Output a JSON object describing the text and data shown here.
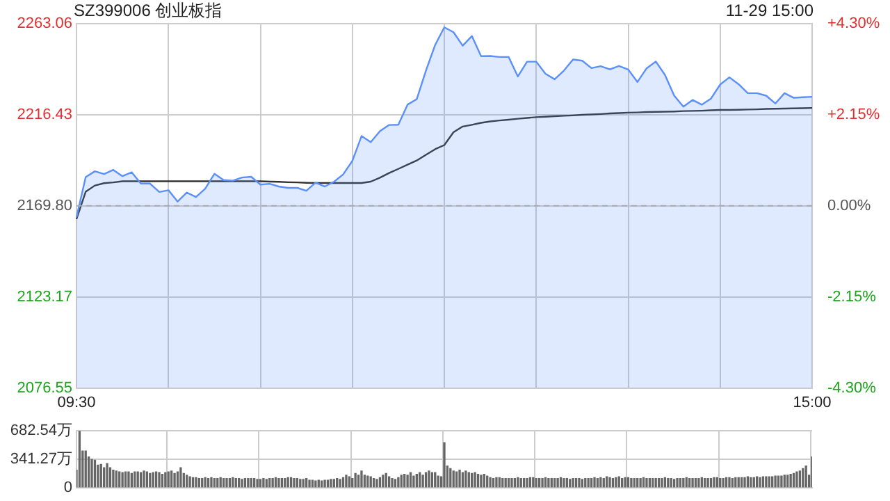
{
  "chart_data": [
    {
      "type": "area",
      "title": "SZ399006 创业板指",
      "annotations": [
        "11-29 15:00"
      ],
      "categories": [
        "09:30",
        null,
        null,
        null,
        null,
        null,
        null,
        null,
        null,
        null,
        null,
        null,
        null,
        null,
        null,
        null,
        null,
        null,
        null,
        null,
        null,
        null,
        null,
        null,
        null,
        null,
        null,
        null,
        null,
        null,
        null,
        null,
        null,
        null,
        null,
        null,
        null,
        null,
        null,
        null,
        null,
        null,
        null,
        null,
        null,
        null,
        null,
        null,
        null,
        null,
        null,
        null,
        null,
        null,
        null,
        null,
        null,
        null,
        null,
        null,
        null,
        null,
        null,
        null,
        null,
        null,
        null,
        null,
        null,
        null,
        null,
        null,
        null,
        null,
        null,
        null,
        null,
        null,
        null,
        null,
        "15:00"
      ],
      "ylim": [
        2076.55,
        2263.06
      ],
      "yticks": [
        {
          "value": 2076.55,
          "label": "2076.55"
        },
        {
          "value": 2123.17,
          "label": "2123.17"
        },
        {
          "value": 2169.8,
          "label": "2169.80"
        },
        {
          "value": 2216.43,
          "label": "2216.43"
        },
        {
          "value": 2263.06,
          "label": "2263.06"
        }
      ],
      "y2lim": [
        -4.3,
        4.3
      ],
      "y2ticks": [
        {
          "value": -4.3,
          "label": "-4.30%"
        },
        {
          "value": -2.15,
          "label": "-2.15%"
        },
        {
          "value": 0,
          "label": "0.00%"
        },
        {
          "value": 2.15,
          "label": "+2.15%"
        },
        {
          "value": 4.3,
          "label": "+4.30%"
        }
      ],
      "grid": true,
      "legend": false,
      "marker": "none",
      "ref_lines": [
        {
          "axis": "y",
          "value": 2169.8,
          "line_style": "dashed",
          "color": "#aaaaaa"
        }
      ],
      "series": [
        {
          "type": "area",
          "color": "#5b8ff9",
          "values": [
            2163.9,
            2184.5,
            2187.5,
            2186.1,
            2188.2,
            2185.0,
            2187.0,
            2181.2,
            2181.2,
            2176.9,
            2177.8,
            2172.0,
            2176.6,
            2174.3,
            2178.6,
            2186.2,
            2183.0,
            2182.7,
            2184.3,
            2184.7,
            2180.7,
            2181.1,
            2179.7,
            2179.0,
            2179.0,
            2177.5,
            2181.7,
            2179.7,
            2182.1,
            2185.9,
            2192.8,
            2205.5,
            2202.4,
            2208.0,
            2211.2,
            2211.3,
            2221.6,
            2224.4,
            2239.0,
            2252.1,
            2261.2,
            2258.7,
            2251.8,
            2256.7,
            2246.4,
            2246.5,
            2246.0,
            2246.0,
            2236.0,
            2243.6,
            2243.6,
            2237.4,
            2234.6,
            2239.0,
            2244.7,
            2244.1,
            2240.3,
            2241.3,
            2239.7,
            2241.4,
            2239.6,
            2233.2,
            2240.2,
            2243.7,
            2236.8,
            2226.2,
            2220.6,
            2224.0,
            2221.6,
            2224.7,
            2231.9,
            2235.6,
            2232.1,
            2227.5,
            2227.5,
            2226.2,
            2222.2,
            2227.5,
            2225.1,
            2225.4,
            2225.6
          ]
        },
        {
          "type": "line",
          "color": "#333333",
          "values": [
            2163.0,
            2177.0,
            2180.2,
            2181.4,
            2181.8,
            2182.4,
            2182.4,
            2182.4,
            2182.4,
            2182.4,
            2182.4,
            2182.4,
            2182.4,
            2182.4,
            2182.4,
            2182.4,
            2182.4,
            2182.4,
            2182.4,
            2182.4,
            2182.4,
            2182.2,
            2182.1,
            2181.9,
            2181.8,
            2181.6,
            2181.5,
            2181.5,
            2181.5,
            2181.5,
            2181.5,
            2181.5,
            2182.2,
            2184.2,
            2186.6,
            2188.7,
            2190.9,
            2193.0,
            2195.9,
            2198.8,
            2200.9,
            2207.5,
            2210.4,
            2211.3,
            2212.3,
            2213.0,
            2213.5,
            2213.9,
            2214.4,
            2214.8,
            2215.2,
            2215.4,
            2215.7,
            2215.9,
            2216.1,
            2216.4,
            2216.6,
            2216.8,
            2217.1,
            2217.3,
            2217.5,
            2217.6,
            2217.8,
            2217.9,
            2218.0,
            2218.1,
            2218.3,
            2218.4,
            2218.5,
            2218.7,
            2218.9,
            2218.9,
            2219.0,
            2219.1,
            2219.2,
            2219.4,
            2219.5,
            2219.6,
            2219.7,
            2219.8,
            2219.9
          ]
        }
      ]
    },
    {
      "type": "bar",
      "color": "#666666",
      "tick_labels": "y",
      "grid": true,
      "legend": false,
      "categories": [
        null,
        null,
        null,
        null,
        null,
        null,
        null,
        null,
        null,
        null,
        null,
        null,
        null,
        null,
        null,
        null,
        null,
        null,
        null,
        null,
        null,
        null,
        null,
        null,
        null,
        null,
        null,
        null,
        null,
        null,
        null,
        null,
        null,
        null,
        null,
        null,
        null,
        null,
        null,
        null,
        null,
        null,
        null,
        null,
        null,
        null,
        null,
        null,
        null,
        null,
        null,
        null,
        null,
        null,
        null,
        null,
        null,
        null,
        null,
        null,
        null,
        null,
        null,
        null,
        null,
        null,
        null,
        null,
        null,
        null,
        null,
        null,
        null,
        null,
        null,
        null,
        null,
        null,
        null,
        null,
        null,
        null,
        null,
        null,
        null,
        null,
        null,
        null,
        null,
        null,
        null,
        null,
        null,
        null,
        null,
        null,
        null,
        null,
        null,
        null,
        null,
        null,
        null,
        null,
        null,
        null,
        null,
        null,
        null,
        null,
        null,
        null,
        null,
        null,
        null,
        null,
        null,
        null,
        null,
        null,
        null,
        null,
        null,
        null,
        null,
        null,
        null,
        null,
        null,
        null,
        null,
        null,
        null,
        null,
        null,
        null,
        null,
        null,
        null,
        null,
        null,
        null,
        null,
        null,
        null,
        null,
        null,
        null,
        null,
        null,
        null,
        null,
        null,
        null,
        null,
        null,
        null,
        null,
        null,
        null,
        null,
        null,
        null,
        null,
        null,
        null,
        null,
        null,
        null,
        null,
        null,
        null,
        null,
        null,
        null,
        null,
        null,
        null,
        null,
        null,
        null,
        null,
        null,
        null,
        null,
        null,
        null,
        null,
        null,
        null,
        null,
        null,
        null,
        null,
        null,
        null,
        null,
        null,
        null,
        null,
        null,
        null,
        null,
        null,
        null,
        null,
        null,
        null,
        null,
        null,
        null,
        null,
        null,
        null,
        null,
        null,
        null,
        null,
        null,
        null,
        null,
        null,
        null,
        null,
        null,
        null,
        null,
        null,
        null,
        null,
        null,
        null,
        null,
        null,
        null,
        null,
        null,
        null,
        null,
        null,
        null
      ],
      "ylim": [
        0,
        682.54
      ],
      "yticks": [
        {
          "value": 0,
          "label": "0"
        },
        {
          "value": 341.27,
          "label": "341.27万"
        },
        {
          "value": 682.54,
          "label": "682.54万"
        }
      ],
      "values": [
        210,
        680,
        440,
        440,
        370,
        340,
        330,
        270,
        280,
        240,
        290,
        240,
        210,
        200,
        190,
        180,
        190,
        190,
        170,
        190,
        190,
        180,
        200,
        190,
        170,
        180,
        190,
        180,
        160,
        180,
        190,
        200,
        170,
        190,
        240,
        170,
        150,
        130,
        120,
        120,
        110,
        110,
        120,
        110,
        120,
        110,
        110,
        120,
        110,
        110,
        110,
        120,
        110,
        110,
        100,
        110,
        110,
        110,
        110,
        100,
        100,
        110,
        100,
        110,
        110,
        120,
        110,
        110,
        110,
        120,
        120,
        110,
        110,
        100,
        100,
        110,
        90,
        90,
        80,
        90,
        80,
        90,
        90,
        100,
        100,
        110,
        100,
        120,
        150,
        130,
        110,
        170,
        150,
        200,
        150,
        140,
        130,
        110,
        100,
        120,
        150,
        170,
        130,
        110,
        100,
        120,
        150,
        160,
        150,
        180,
        140,
        160,
        180,
        150,
        180,
        200,
        180,
        180,
        140,
        130,
        540,
        260,
        230,
        200,
        190,
        210,
        180,
        200,
        180,
        170,
        180,
        160,
        150,
        160,
        140,
        120,
        110,
        120,
        120,
        110,
        110,
        110,
        110,
        110,
        120,
        110,
        110,
        110,
        120,
        120,
        110,
        110,
        110,
        120,
        110,
        110,
        110,
        110,
        120,
        110,
        110,
        100,
        110,
        110,
        110,
        100,
        110,
        110,
        110,
        120,
        110,
        120,
        110,
        130,
        120,
        110,
        120,
        130,
        110,
        120,
        120,
        110,
        110,
        110,
        110,
        120,
        110,
        110,
        110,
        110,
        110,
        110,
        120,
        110,
        110,
        100,
        110,
        110,
        110,
        120,
        110,
        110,
        110,
        110,
        120,
        110,
        110,
        110,
        120,
        120,
        110,
        110,
        120,
        120,
        110,
        120,
        120,
        120,
        120,
        130,
        120,
        120,
        130,
        120,
        130,
        130,
        130,
        130,
        140,
        140,
        140,
        150,
        150,
        160,
        170,
        190,
        200,
        230,
        260,
        150,
        370
      ]
    }
  ]
}
